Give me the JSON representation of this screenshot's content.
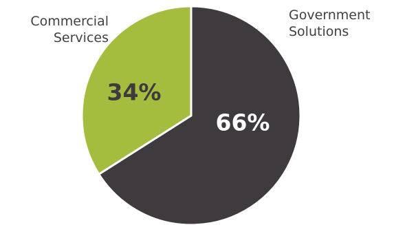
{
  "chart_data": {
    "type": "pie",
    "categories": [
      "Government Solutions",
      "Commercial Services"
    ],
    "label_lines": [
      [
        "Government",
        "Solutions"
      ],
      [
        "Commercial",
        "Services"
      ]
    ],
    "values": [
      66,
      34
    ],
    "value_labels": [
      "66%",
      "34%"
    ],
    "colors": [
      "#3e3a3d",
      "#a4bd3e"
    ],
    "label_colors": [
      "#ffffff",
      "#3e3a3d"
    ],
    "start_angle": "12 o'clock",
    "direction": "clockwise",
    "legend": "none"
  }
}
